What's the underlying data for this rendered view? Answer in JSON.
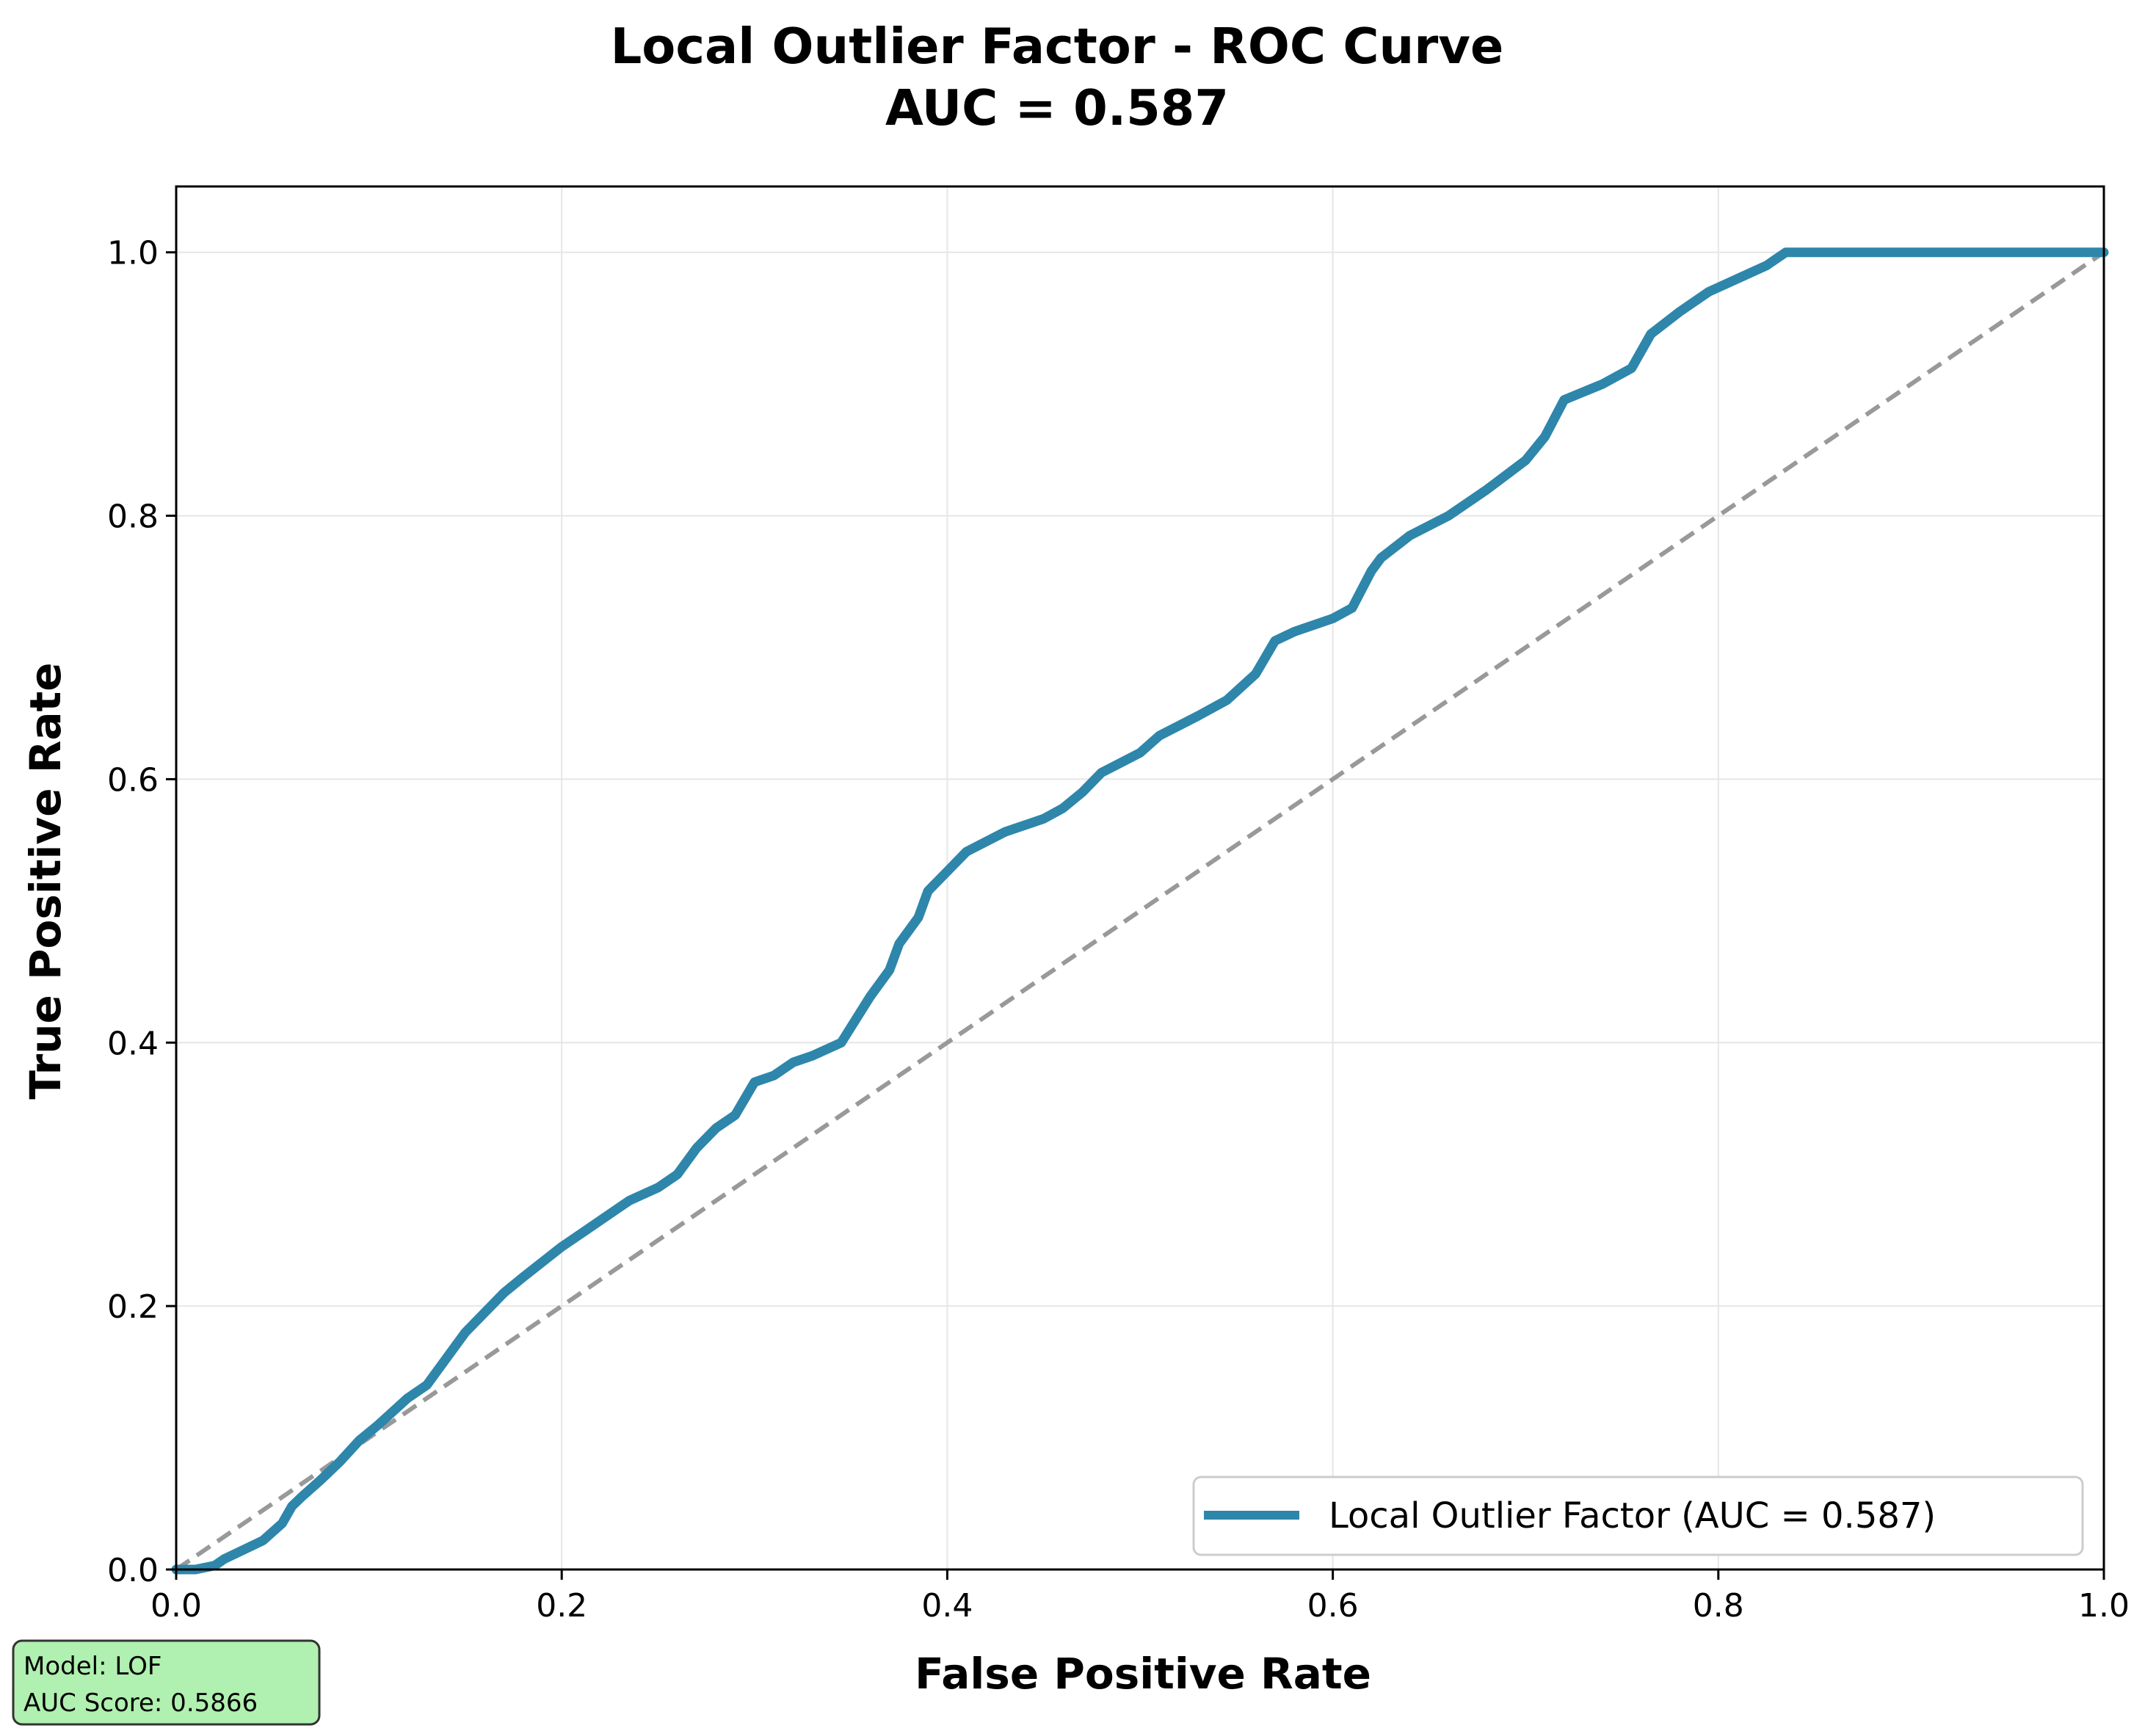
{
  "chart_data": {
    "type": "line",
    "title": "Local Outlier Factor - ROC Curve",
    "subtitle": "AUC = 0.587",
    "xlabel": "False Positive Rate",
    "ylabel": "True Positive Rate",
    "xlim": [
      0.0,
      1.0
    ],
    "ylim": [
      0.0,
      1.05
    ],
    "xticks": [
      "0.0",
      "0.2",
      "0.4",
      "0.6",
      "0.8",
      "1.0"
    ],
    "yticks": [
      "0.0",
      "0.2",
      "0.4",
      "0.6",
      "0.8",
      "1.0"
    ],
    "grid": true,
    "legend_position": "lower-right",
    "series": [
      {
        "name": "Local Outlier Factor (AUC = 0.587)",
        "color": "#2e86ab",
        "style": "solid",
        "x": [
          0.0,
          0.01,
          0.02,
          0.025,
          0.035,
          0.045,
          0.055,
          0.06,
          0.065,
          0.075,
          0.085,
          0.095,
          0.105,
          0.12,
          0.13,
          0.14,
          0.15,
          0.16,
          0.17,
          0.18,
          0.2,
          0.21,
          0.225,
          0.235,
          0.25,
          0.26,
          0.27,
          0.28,
          0.29,
          0.3,
          0.31,
          0.32,
          0.33,
          0.345,
          0.36,
          0.37,
          0.375,
          0.385,
          0.39,
          0.4,
          0.41,
          0.43,
          0.45,
          0.46,
          0.47,
          0.48,
          0.5,
          0.51,
          0.53,
          0.545,
          0.56,
          0.57,
          0.58,
          0.6,
          0.61,
          0.62,
          0.625,
          0.64,
          0.66,
          0.68,
          0.7,
          0.71,
          0.72,
          0.74,
          0.755,
          0.765,
          0.78,
          0.795,
          0.81,
          0.825,
          0.835,
          0.86,
          0.9,
          0.95,
          1.0
        ],
        "y": [
          0.0,
          0.0,
          0.003,
          0.008,
          0.015,
          0.022,
          0.035,
          0.048,
          0.055,
          0.068,
          0.082,
          0.098,
          0.11,
          0.13,
          0.14,
          0.16,
          0.18,
          0.195,
          0.21,
          0.222,
          0.245,
          0.255,
          0.27,
          0.28,
          0.29,
          0.3,
          0.32,
          0.335,
          0.345,
          0.37,
          0.375,
          0.385,
          0.39,
          0.4,
          0.435,
          0.455,
          0.475,
          0.495,
          0.515,
          0.53,
          0.545,
          0.56,
          0.57,
          0.578,
          0.59,
          0.605,
          0.62,
          0.633,
          0.648,
          0.66,
          0.68,
          0.705,
          0.712,
          0.722,
          0.73,
          0.758,
          0.768,
          0.785,
          0.8,
          0.82,
          0.842,
          0.86,
          0.888,
          0.9,
          0.912,
          0.938,
          0.955,
          0.97,
          0.98,
          0.99,
          1.0,
          1.0,
          1.0,
          1.0,
          1.0
        ]
      },
      {
        "color": "#999999",
        "style": "dashed",
        "x": [
          0.0,
          1.0
        ],
        "y": [
          0.0,
          1.0
        ]
      }
    ]
  },
  "info_box": {
    "line1": "Model: LOF",
    "line2": "AUC Score: 0.5866",
    "background": "#b0f0b0",
    "border": "#333333"
  }
}
